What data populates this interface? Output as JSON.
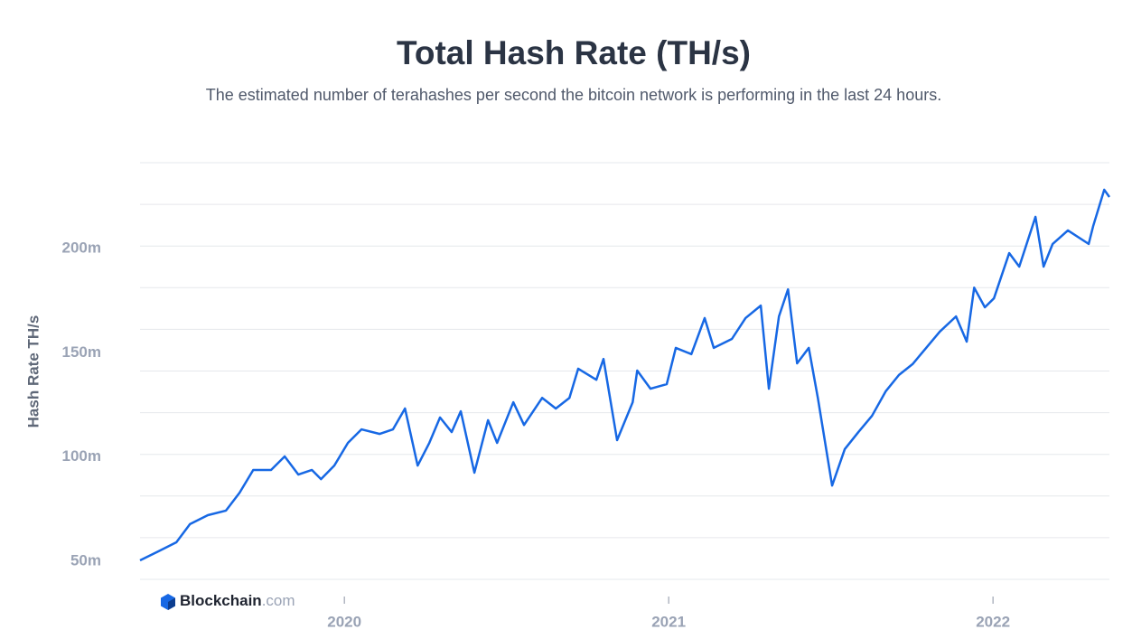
{
  "chart_data": {
    "type": "line",
    "title": "Total Hash Rate (TH/s)",
    "subtitle": "The estimated number of terahashes per second the bitcoin network is performing in the last 24 hours.",
    "y_label": "Hash Rate TH/s",
    "logo_name": "Blockchain",
    "logo_suffix": ".com",
    "xlim": [
      2019.37,
      2022.359
    ],
    "xticks": [
      2020,
      2021,
      2022
    ],
    "ylim": [
      40,
      240
    ],
    "yticks": [
      {
        "value": 50,
        "label": "50m"
      },
      {
        "value": 100,
        "label": "100m"
      },
      {
        "value": 150,
        "label": "150m"
      },
      {
        "value": 200,
        "label": "200m"
      }
    ],
    "ygrid": [
      40,
      60,
      80,
      100,
      120,
      140,
      160,
      180,
      200,
      220,
      240
    ],
    "grid": true,
    "series": [
      {
        "name": "Hash Rate",
        "color": "#1768e4",
        "x": [
          2019.37,
          2019.426,
          2019.482,
          2019.524,
          2019.579,
          2019.635,
          2019.677,
          2019.719,
          2019.774,
          2019.816,
          2019.858,
          2019.9,
          2019.928,
          2019.969,
          2020.011,
          2020.053,
          2020.109,
          2020.15,
          2020.187,
          2020.226,
          2020.262,
          2020.295,
          2020.331,
          2020.359,
          2020.401,
          2020.443,
          2020.471,
          2020.521,
          2020.554,
          2020.61,
          2020.652,
          2020.694,
          2020.721,
          2020.777,
          2020.799,
          2020.841,
          2020.889,
          2020.903,
          2020.944,
          2020.994,
          2021.022,
          2021.07,
          2021.111,
          2021.139,
          2021.195,
          2021.237,
          2021.284,
          2021.309,
          2021.34,
          2021.368,
          2021.396,
          2021.432,
          2021.46,
          2021.504,
          2021.543,
          2021.585,
          2021.627,
          2021.669,
          2021.71,
          2021.752,
          2021.794,
          2021.836,
          2021.886,
          2021.919,
          2021.942,
          2021.975,
          2022.003,
          2022.05,
          2022.081,
          2022.131,
          2022.156,
          2022.184,
          2022.231,
          2022.295,
          2022.309,
          2022.343,
          2022.359
        ],
        "values": [
          49.1,
          53.4,
          57.8,
          66.5,
          70.8,
          73.0,
          81.6,
          92.5,
          92.5,
          99.0,
          90.3,
          92.5,
          88.1,
          94.6,
          105.5,
          112.0,
          109.8,
          112.0,
          122.0,
          94.6,
          105.5,
          117.7,
          110.7,
          120.7,
          91.2,
          116.4,
          105.5,
          125.0,
          114.1,
          127.1,
          122.0,
          127.1,
          141.1,
          135.8,
          145.8,
          106.8,
          125.0,
          140.2,
          131.5,
          133.7,
          151.1,
          148.1,
          165.4,
          151.1,
          155.4,
          165.4,
          171.4,
          131.5,
          166.2,
          179.2,
          143.7,
          151.1,
          127.1,
          85.0,
          102.5,
          110.7,
          118.5,
          130.2,
          138.1,
          143.3,
          151.1,
          158.9,
          166.2,
          154.1,
          180.0,
          170.6,
          174.9,
          196.6,
          190.1,
          214.0,
          190.1,
          201.0,
          207.5,
          201.0,
          209.6,
          227.0,
          223.5
        ]
      }
    ]
  }
}
